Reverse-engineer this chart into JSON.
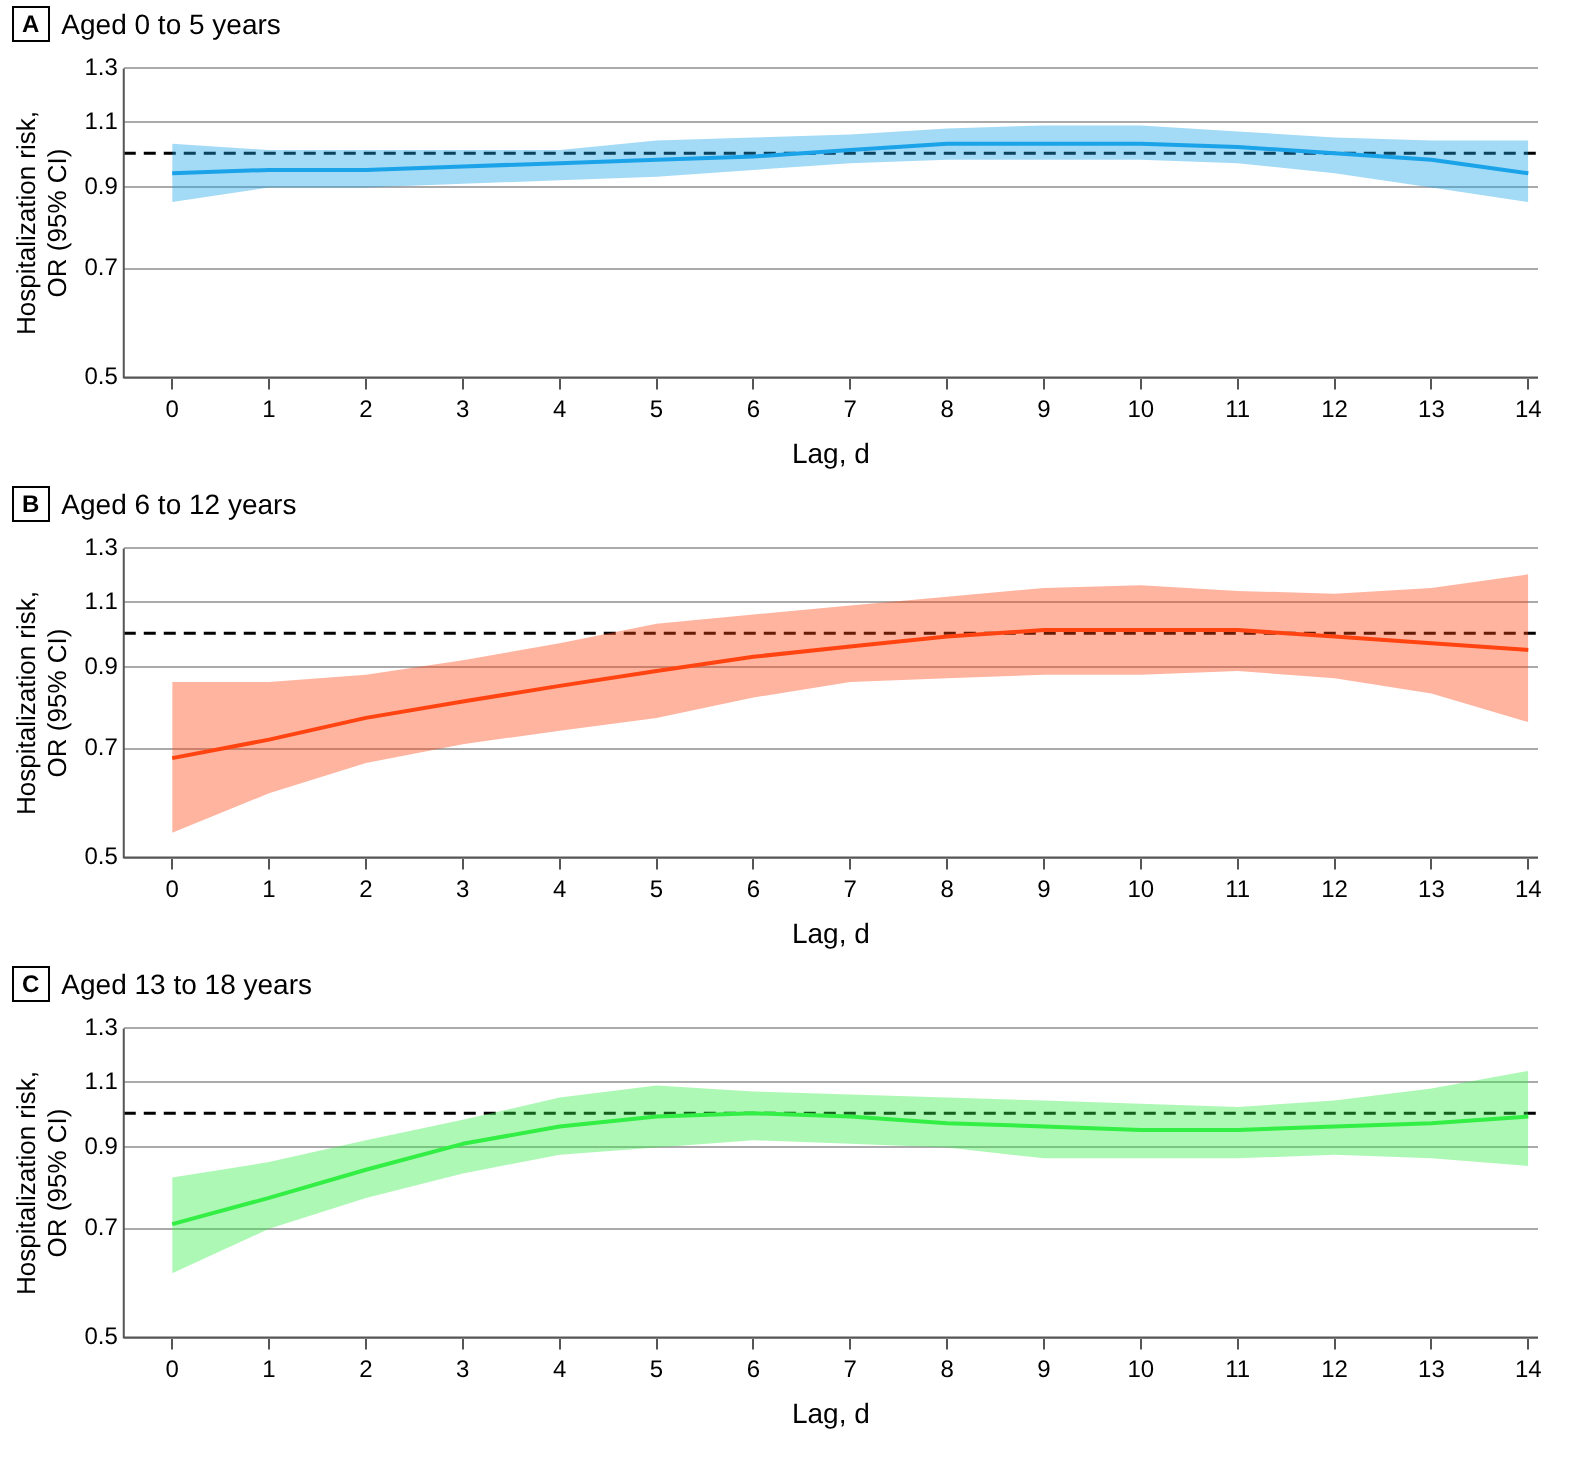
{
  "chart_data": [
    {
      "type": "line",
      "title": "Aged 0 to 5 years",
      "annotations": [
        "A"
      ],
      "xlabel": "Lag, d",
      "ylabel": "Hospitalization risk, OR (95% CI)",
      "log": "y",
      "grid": "y",
      "legend": false,
      "marker": "none",
      "line_style": "solid",
      "x": [
        0,
        1,
        2,
        3,
        4,
        5,
        6,
        7,
        8,
        9,
        10,
        11,
        12,
        13,
        14
      ],
      "xlim": [
        -0.5,
        14.1
      ],
      "xticks": [
        0,
        1,
        2,
        3,
        4,
        5,
        6,
        7,
        8,
        9,
        10,
        11,
        12,
        13,
        14
      ],
      "ylim": [
        0.5,
        1.3
      ],
      "yticks": [
        0.5,
        0.7,
        0.9,
        1.1,
        1.3
      ],
      "ref_lines": [
        {
          "axis": "y",
          "value": 1,
          "color": "#000000",
          "line_style": "dashed"
        }
      ],
      "series": [
        {
          "color": "#1aa3e8",
          "values": [
            0.94,
            0.95,
            0.95,
            0.96,
            0.97,
            0.98,
            0.99,
            1.01,
            1.03,
            1.03,
            1.03,
            1.02,
            1.0,
            0.98,
            0.94
          ],
          "lower": [
            0.86,
            0.9,
            0.9,
            0.91,
            0.92,
            0.93,
            0.95,
            0.97,
            0.98,
            0.98,
            0.98,
            0.97,
            0.94,
            0.9,
            0.86
          ],
          "upper": [
            1.03,
            1.01,
            1.01,
            1.01,
            1.01,
            1.04,
            1.05,
            1.06,
            1.08,
            1.09,
            1.09,
            1.07,
            1.05,
            1.04,
            1.04
          ]
        }
      ]
    },
    {
      "type": "line",
      "title": "Aged 6 to 12 years",
      "annotations": [
        "B"
      ],
      "xlabel": "Lag, d",
      "ylabel": "Hospitalization risk, OR (95% CI)",
      "log": "y",
      "grid": "y",
      "legend": false,
      "marker": "none",
      "line_style": "solid",
      "x": [
        0,
        1,
        2,
        3,
        4,
        5,
        6,
        7,
        8,
        9,
        10,
        11,
        12,
        13,
        14
      ],
      "xlim": [
        -0.5,
        14.1
      ],
      "xticks": [
        0,
        1,
        2,
        3,
        4,
        5,
        6,
        7,
        8,
        9,
        10,
        11,
        12,
        13,
        14
      ],
      "ylim": [
        0.5,
        1.3
      ],
      "yticks": [
        0.5,
        0.7,
        0.9,
        1.1,
        1.3
      ],
      "ref_lines": [
        {
          "axis": "y",
          "value": 1,
          "color": "#000000",
          "line_style": "dashed"
        }
      ],
      "series": [
        {
          "color": "#ff4411",
          "values": [
            0.68,
            0.72,
            0.77,
            0.81,
            0.85,
            0.89,
            0.93,
            0.96,
            0.99,
            1.01,
            1.01,
            1.01,
            0.99,
            0.97,
            0.95
          ],
          "lower": [
            0.54,
            0.61,
            0.67,
            0.71,
            0.74,
            0.77,
            0.82,
            0.86,
            0.87,
            0.88,
            0.88,
            0.89,
            0.87,
            0.83,
            0.76
          ],
          "upper": [
            0.86,
            0.86,
            0.88,
            0.92,
            0.97,
            1.03,
            1.06,
            1.09,
            1.12,
            1.15,
            1.16,
            1.14,
            1.13,
            1.15,
            1.2
          ]
        }
      ]
    },
    {
      "type": "line",
      "title": "Aged 13 to 18 years",
      "annotations": [
        "C"
      ],
      "xlabel": "Lag, d",
      "ylabel": "Hospitalization risk, OR (95% CI)",
      "log": "y",
      "grid": "y",
      "legend": false,
      "marker": "none",
      "line_style": "solid",
      "x": [
        0,
        1,
        2,
        3,
        4,
        5,
        6,
        7,
        8,
        9,
        10,
        11,
        12,
        13,
        14
      ],
      "xlim": [
        -0.5,
        14.1
      ],
      "xticks": [
        0,
        1,
        2,
        3,
        4,
        5,
        6,
        7,
        8,
        9,
        10,
        11,
        12,
        13,
        14
      ],
      "ylim": [
        0.5,
        1.3
      ],
      "yticks": [
        0.5,
        0.7,
        0.9,
        1.1,
        1.3
      ],
      "ref_lines": [
        {
          "axis": "y",
          "value": 1,
          "color": "#000000",
          "line_style": "dashed"
        }
      ],
      "series": [
        {
          "color": "#33ee44",
          "values": [
            0.71,
            0.77,
            0.84,
            0.91,
            0.96,
            0.99,
            1.0,
            0.99,
            0.97,
            0.96,
            0.95,
            0.95,
            0.96,
            0.97,
            0.99
          ],
          "lower": [
            0.61,
            0.7,
            0.77,
            0.83,
            0.88,
            0.9,
            0.92,
            0.91,
            0.9,
            0.87,
            0.87,
            0.87,
            0.88,
            0.87,
            0.85
          ],
          "upper": [
            0.82,
            0.86,
            0.92,
            0.98,
            1.05,
            1.09,
            1.07,
            1.06,
            1.05,
            1.04,
            1.03,
            1.02,
            1.04,
            1.08,
            1.14
          ]
        }
      ]
    }
  ]
}
